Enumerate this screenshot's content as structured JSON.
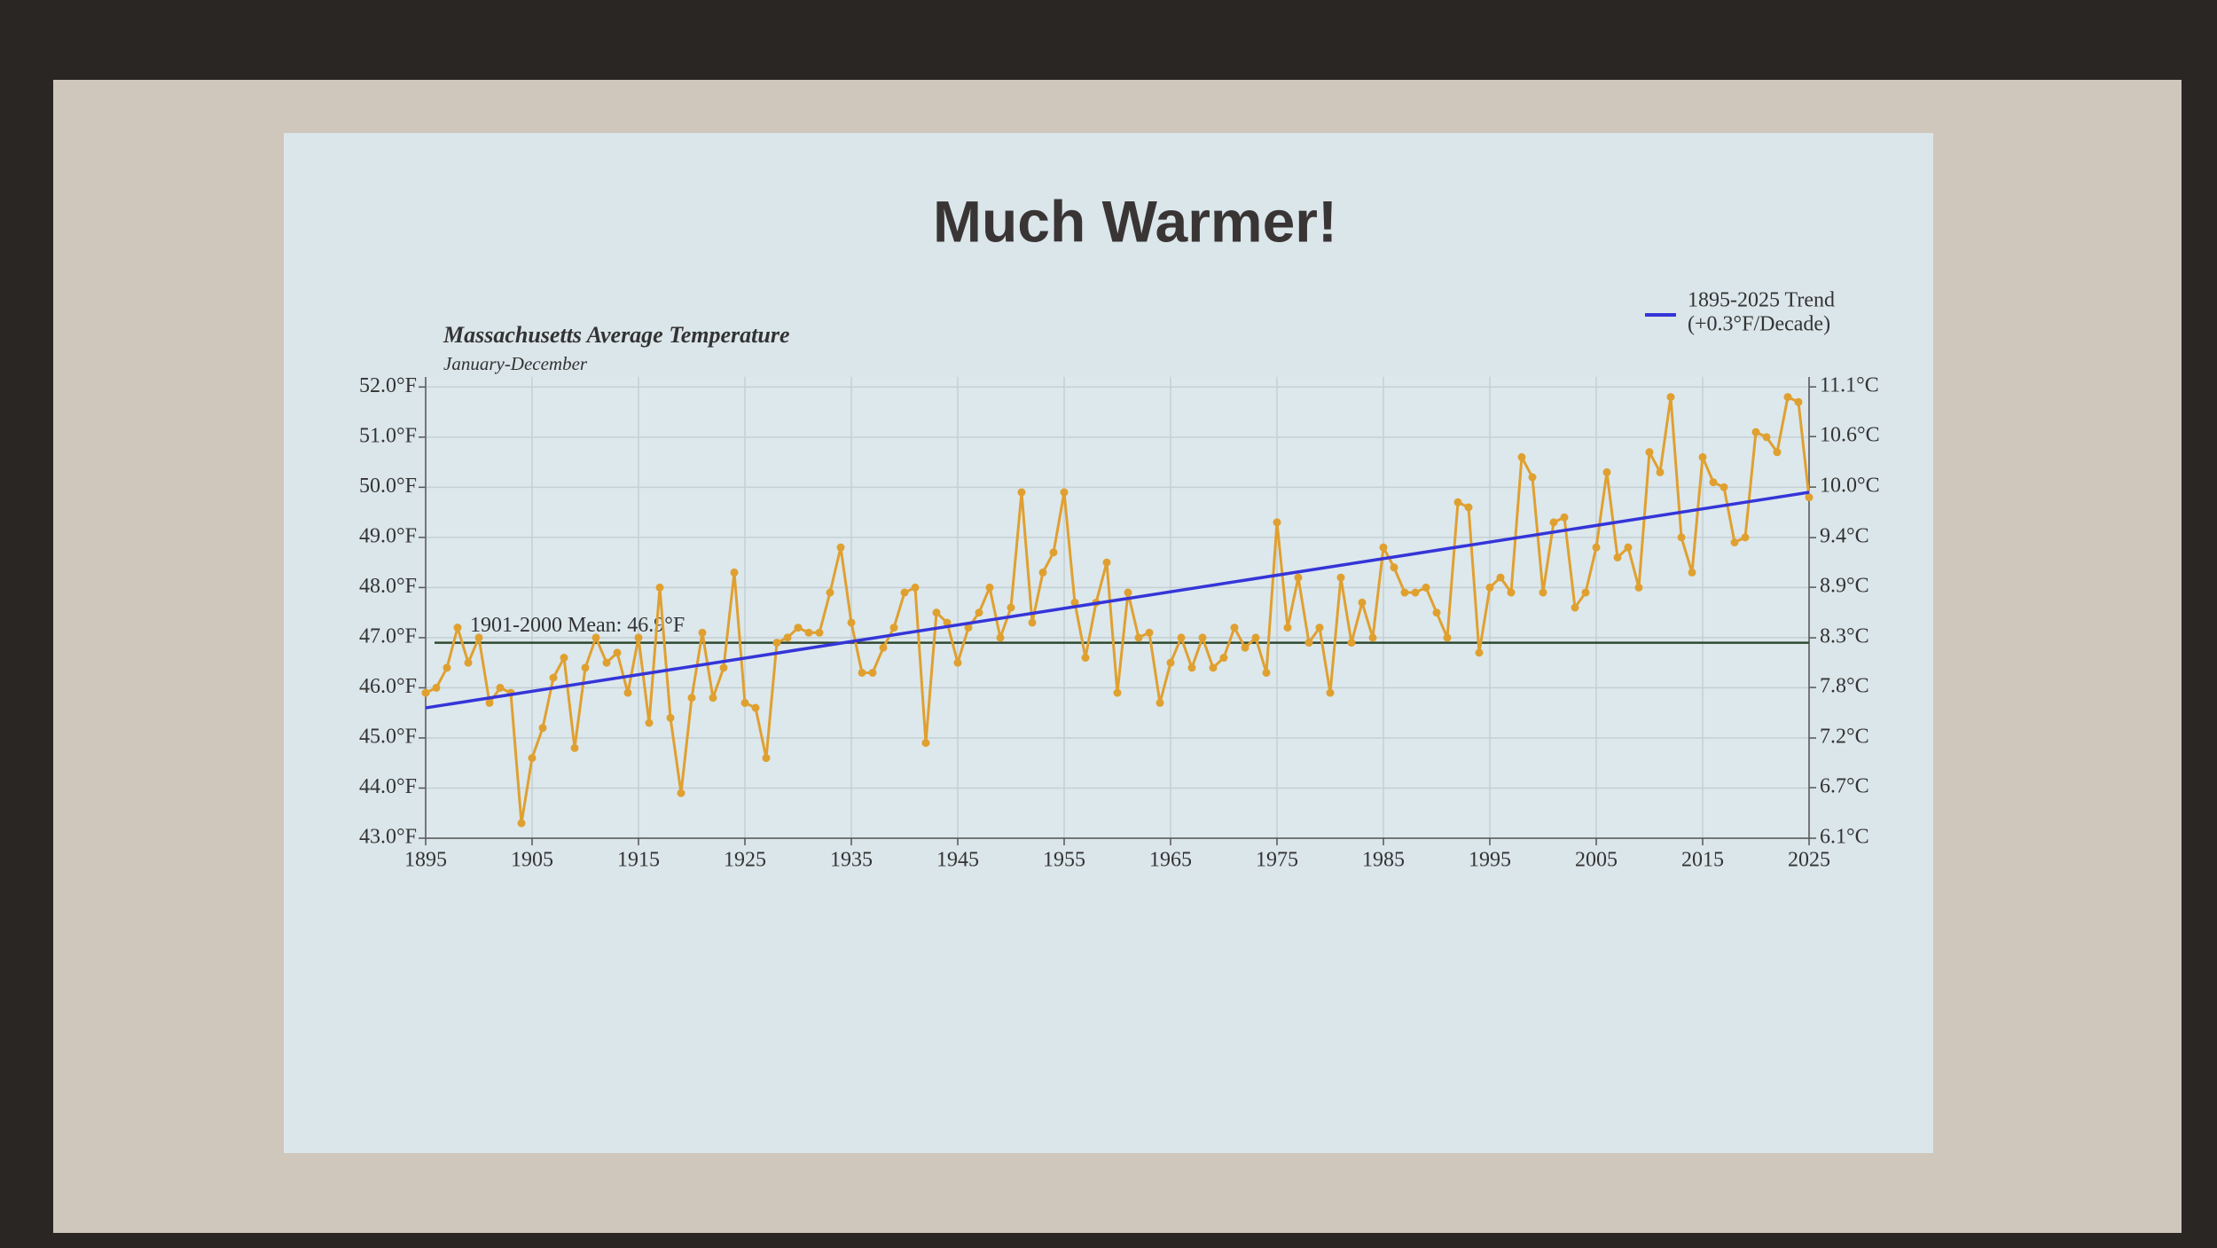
{
  "slide_title": "Much Warmer!",
  "chart_data": {
    "type": "line",
    "title": "Massachusetts Average Temperature",
    "subtitle": "January-December",
    "x": [
      1895,
      1896,
      1897,
      1898,
      1899,
      1900,
      1901,
      1902,
      1903,
      1904,
      1905,
      1906,
      1907,
      1908,
      1909,
      1910,
      1911,
      1912,
      1913,
      1914,
      1915,
      1916,
      1917,
      1918,
      1919,
      1920,
      1921,
      1922,
      1923,
      1924,
      1925,
      1926,
      1927,
      1928,
      1929,
      1930,
      1931,
      1932,
      1933,
      1934,
      1935,
      1936,
      1937,
      1938,
      1939,
      1940,
      1941,
      1942,
      1943,
      1944,
      1945,
      1946,
      1947,
      1948,
      1949,
      1950,
      1951,
      1952,
      1953,
      1954,
      1955,
      1956,
      1957,
      1958,
      1959,
      1960,
      1961,
      1962,
      1963,
      1964,
      1965,
      1966,
      1967,
      1968,
      1969,
      1970,
      1971,
      1972,
      1973,
      1974,
      1975,
      1976,
      1977,
      1978,
      1979,
      1980,
      1981,
      1982,
      1983,
      1984,
      1985,
      1986,
      1987,
      1988,
      1989,
      1990,
      1991,
      1992,
      1993,
      1994,
      1995,
      1996,
      1997,
      1998,
      1999,
      2000,
      2001,
      2002,
      2003,
      2004,
      2005,
      2006,
      2007,
      2008,
      2009,
      2010,
      2011,
      2012,
      2013,
      2014,
      2015,
      2016,
      2017,
      2018,
      2019,
      2020,
      2021,
      2022,
      2023,
      2024,
      2025
    ],
    "series": [
      {
        "color": "#e0a030",
        "values": [
          45.9,
          46.0,
          46.4,
          47.2,
          46.5,
          47.0,
          45.7,
          46.0,
          45.9,
          43.3,
          44.6,
          45.2,
          46.2,
          46.6,
          44.8,
          46.4,
          47.0,
          46.5,
          46.7,
          45.9,
          47.0,
          45.3,
          48.0,
          45.4,
          43.9,
          45.8,
          47.1,
          45.8,
          46.4,
          48.3,
          45.7,
          45.6,
          44.6,
          46.9,
          47.0,
          47.2,
          47.1,
          47.1,
          47.9,
          48.8,
          47.3,
          46.3,
          46.3,
          46.8,
          47.2,
          47.9,
          48.0,
          44.9,
          47.5,
          47.3,
          46.5,
          47.2,
          47.5,
          48.0,
          47.0,
          47.6,
          49.9,
          47.3,
          48.3,
          48.7,
          49.9,
          47.7,
          46.6,
          47.7,
          48.5,
          45.9,
          47.9,
          47.0,
          47.1,
          45.7,
          46.5,
          47.0,
          46.4,
          47.0,
          46.4,
          46.6,
          47.2,
          46.8,
          47.0,
          46.3,
          49.3,
          47.2,
          48.2,
          46.9,
          47.2,
          45.9,
          48.2,
          46.9,
          47.7,
          47.0,
          48.8,
          48.4,
          47.9,
          47.9,
          48.0,
          47.5,
          47.0,
          49.7,
          49.6,
          46.7,
          48.0,
          48.2,
          47.9,
          50.6,
          50.2,
          47.9,
          49.3,
          49.4,
          47.6,
          47.9,
          48.8,
          50.3,
          48.6,
          48.8,
          48.0,
          50.7,
          50.3,
          51.8,
          49.0,
          48.3,
          50.6,
          50.1,
          50.0,
          48.9,
          49.0,
          51.1,
          51.0,
          50.7,
          51.8,
          51.7,
          49.8
        ]
      }
    ],
    "trend": {
      "name": "1895-2025 Trend",
      "note": "(+0.3°F/Decade)",
      "color": "#3535d8",
      "x": [
        1895,
        2025
      ],
      "values": [
        45.6,
        49.9
      ]
    },
    "mean": {
      "value": 46.9,
      "label": "1901-2000 Mean: 46.9°F",
      "color": "#2f4a2f"
    },
    "xlim": [
      1895,
      2025
    ],
    "xticks": [
      1895,
      1905,
      1915,
      1925,
      1935,
      1945,
      1955,
      1965,
      1975,
      1985,
      1995,
      2005,
      2015,
      2025
    ],
    "ylim": [
      43,
      52.2
    ],
    "yticks": [
      {
        "value": 43,
        "label": "43.0°F"
      },
      {
        "value": 44,
        "label": "44.0°F"
      },
      {
        "value": 45,
        "label": "45.0°F"
      },
      {
        "value": 46,
        "label": "46.0°F"
      },
      {
        "value": 47,
        "label": "47.0°F"
      },
      {
        "value": 48,
        "label": "48.0°F"
      },
      {
        "value": 49,
        "label": "49.0°F"
      },
      {
        "value": 50,
        "label": "50.0°F"
      },
      {
        "value": 51,
        "label": "51.0°F"
      },
      {
        "value": 52,
        "label": "52.0°F"
      }
    ],
    "y2lim": [
      6.11,
      11.22
    ],
    "y2ticks": [
      {
        "value": 6.11,
        "label": "6.1°C"
      },
      {
        "value": 6.67,
        "label": "6.7°C"
      },
      {
        "value": 7.22,
        "label": "7.2°C"
      },
      {
        "value": 7.78,
        "label": "7.8°C"
      },
      {
        "value": 8.33,
        "label": "8.3°C"
      },
      {
        "value": 8.89,
        "label": "8.9°C"
      },
      {
        "value": 9.44,
        "label": "9.4°C"
      },
      {
        "value": 10,
        "label": "10.0°C"
      },
      {
        "value": 10.56,
        "label": "10.6°C"
      },
      {
        "value": 11.11,
        "label": "11.1°C"
      }
    ],
    "grid": true
  }
}
